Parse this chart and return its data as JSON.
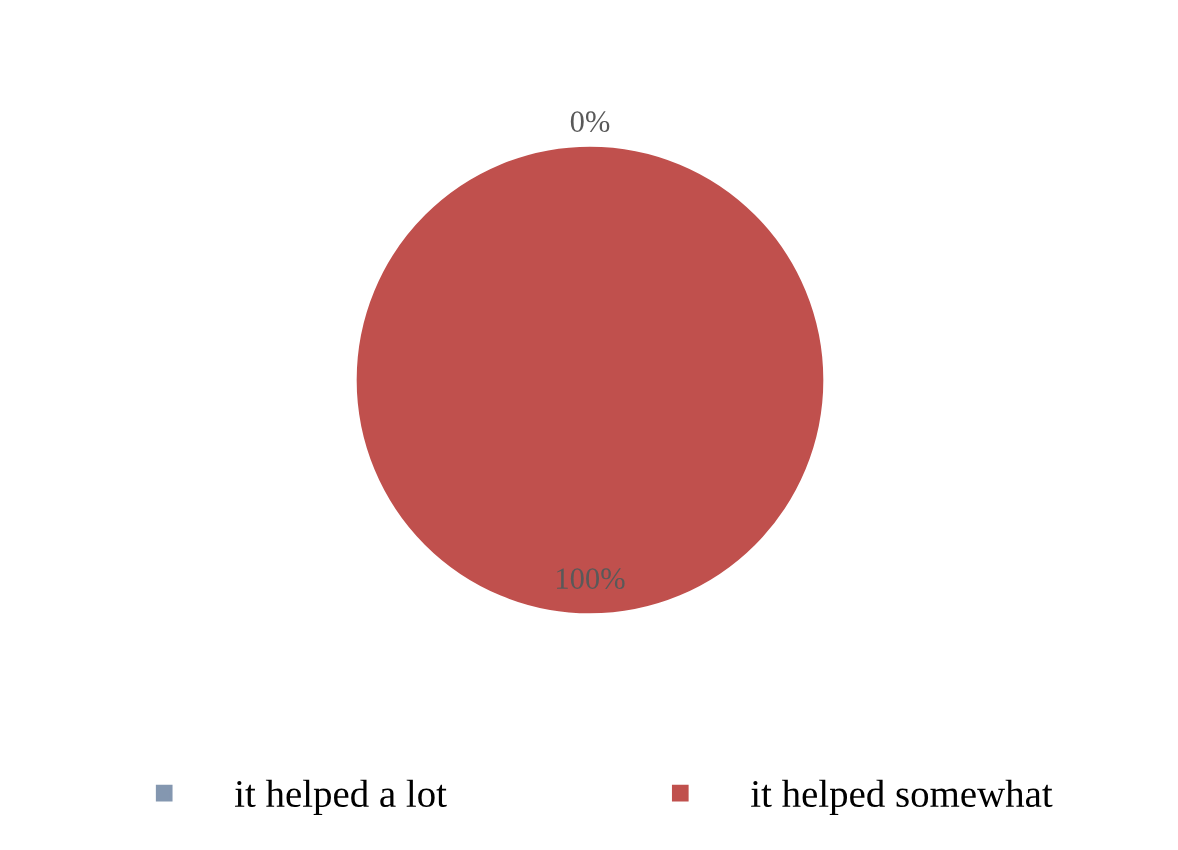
{
  "chart_data": {
    "type": "pie",
    "categories": [
      "it helped a lot",
      "it helped somewhat"
    ],
    "values": [
      0,
      100
    ],
    "colors": [
      "#8497b0",
      "#c0504d"
    ],
    "value_labels": [
      "0%",
      "100%"
    ],
    "legend": "bottom"
  }
}
